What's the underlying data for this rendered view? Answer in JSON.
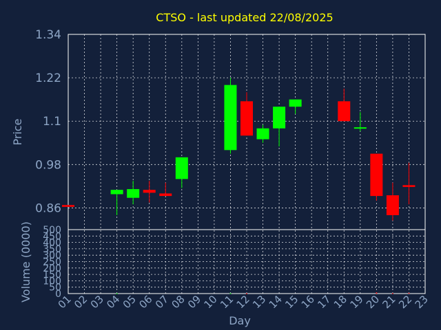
{
  "colors": {
    "background": "#13203a",
    "up": "#00ff00",
    "down": "#ff0000",
    "title": "#ffff00",
    "axis_text": "#8ea6c6",
    "grid": "#ffffff"
  },
  "chart_data": [
    {
      "type": "candlestick",
      "title": "CTSO - last updated 22/08/2025",
      "ylabel": "Price",
      "ylim": [
        0.8,
        1.34
      ],
      "yticks": [
        "1.34",
        "1.22",
        "1.1",
        "0.98",
        "0.86"
      ],
      "grid": true,
      "categories": [
        "01",
        "02",
        "03",
        "04",
        "05",
        "06",
        "07",
        "08",
        "09",
        "10",
        "11",
        "12",
        "13",
        "14",
        "15",
        "16",
        "17",
        "18",
        "19",
        "20",
        "21",
        "22",
        "23"
      ],
      "candles": [
        {
          "day": "01",
          "open": 0.868,
          "close": 0.863,
          "high": 0.868,
          "low": 0.863
        },
        {
          "day": "04",
          "open": 0.898,
          "close": 0.91,
          "high": 0.91,
          "low": 0.84
        },
        {
          "day": "05",
          "open": 0.888,
          "close": 0.912,
          "high": 0.935,
          "low": 0.87
        },
        {
          "day": "06",
          "open": 0.91,
          "close": 0.902,
          "high": 0.935,
          "low": 0.875
        },
        {
          "day": "07",
          "open": 0.9,
          "close": 0.893,
          "high": 0.93,
          "low": 0.893
        },
        {
          "day": "08",
          "open": 0.94,
          "close": 1.0,
          "high": 1.0,
          "low": 0.915
        },
        {
          "day": "11",
          "open": 1.02,
          "close": 1.2,
          "high": 1.22,
          "low": 1.01
        },
        {
          "day": "12",
          "open": 1.155,
          "close": 1.06,
          "high": 1.18,
          "low": 1.06
        },
        {
          "day": "13",
          "open": 1.05,
          "close": 1.08,
          "high": 1.09,
          "low": 1.04
        },
        {
          "day": "14",
          "open": 1.08,
          "close": 1.14,
          "high": 1.14,
          "low": 1.03
        },
        {
          "day": "15",
          "open": 1.14,
          "close": 1.16,
          "high": 1.16,
          "low": 1.12
        },
        {
          "day": "18",
          "open": 1.155,
          "close": 1.1,
          "high": 1.19,
          "low": 1.1
        },
        {
          "day": "19",
          "open": 1.08,
          "close": 1.083,
          "high": 1.125,
          "low": 1.072
        },
        {
          "day": "20",
          "open": 1.01,
          "close": 0.893,
          "high": 1.01,
          "low": 0.88
        },
        {
          "day": "21",
          "open": 0.895,
          "close": 0.84,
          "high": 0.93,
          "low": 0.825
        },
        {
          "day": "22",
          "open": 0.923,
          "close": 0.918,
          "high": 0.985,
          "low": 0.87
        }
      ]
    },
    {
      "type": "bar",
      "ylabel": "Volume (0000)",
      "xlabel": "Day",
      "ylim": [
        0,
        500
      ],
      "yticks": [
        "500",
        "450",
        "400",
        "350",
        "300",
        "250",
        "200",
        "150",
        "100",
        "50",
        "0"
      ],
      "categories": [
        "01",
        "02",
        "03",
        "04",
        "05",
        "06",
        "07",
        "08",
        "09",
        "10",
        "11",
        "12",
        "13",
        "14",
        "15",
        "16",
        "17",
        "18",
        "19",
        "20",
        "21",
        "22",
        "23"
      ],
      "values": [
        {
          "day": "04",
          "volume": 2,
          "dir": "up"
        },
        {
          "day": "11",
          "volume": 3,
          "dir": "up"
        },
        {
          "day": "12",
          "volume": 2,
          "dir": "down"
        },
        {
          "day": "20",
          "volume": 8,
          "dir": "down"
        },
        {
          "day": "21",
          "volume": 3,
          "dir": "down"
        },
        {
          "day": "22",
          "volume": 5,
          "dir": "down"
        }
      ]
    }
  ]
}
